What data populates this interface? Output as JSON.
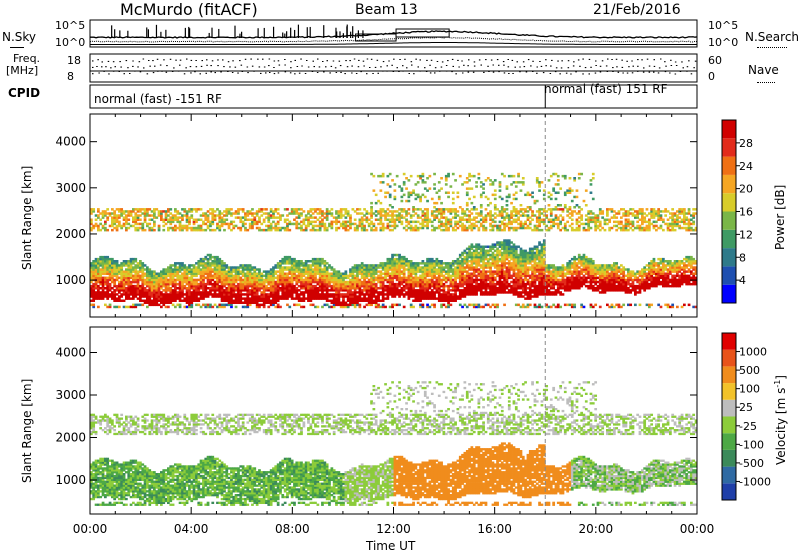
{
  "header": {
    "site": "McMurdo (fitACF)",
    "beam": "Beam 13",
    "date": "21/Feb/2016"
  },
  "top_panel": {
    "nsky_label": "N.Sky",
    "nsky_ticks": [
      "10^5",
      "10^0"
    ],
    "nsearch_label": "N.Search",
    "nsearch_ticks": [
      "10^5",
      "10^0"
    ],
    "freq_label_line1": "Freq.",
    "freq_label_line2": "[MHz]",
    "freq_ticks": [
      "18",
      "8"
    ],
    "nave_label": "Nave",
    "nave_ticks": [
      "60",
      "0"
    ],
    "cpid_label": "CPID",
    "cpid_left": "normal (fast) -151 RF",
    "cpid_right": "normal (fast) 151 RF"
  },
  "chart_data": [
    {
      "type": "heatmap",
      "ylabel": "Slant Range [km]",
      "xlabel": "",
      "yticks": [
        1000,
        2000,
        3000,
        4000
      ],
      "ylim": [
        200,
        4600
      ],
      "xticks": [
        "00:00",
        "04:00",
        "08:00",
        "12:00",
        "16:00",
        "20:00",
        "00:00"
      ],
      "xlim_hours": [
        0,
        24
      ],
      "colorbar": {
        "label": "Power [dB]",
        "ticks": [
          "28",
          "24",
          "20",
          "16",
          "12",
          "8",
          "4"
        ],
        "colors": [
          "#0000ff",
          "#1e4fb0",
          "#2e7a8a",
          "#3f9a64",
          "#7ab648",
          "#d8cc2a",
          "#f5a623",
          "#ef7014",
          "#e22b1b",
          "#d00000"
        ]
      }
    },
    {
      "type": "heatmap",
      "ylabel": "Slant Range [km]",
      "xlabel": "Time UT",
      "yticks": [
        1000,
        2000,
        3000,
        4000
      ],
      "ylim": [
        200,
        4600
      ],
      "xticks": [
        "00:00",
        "04:00",
        "08:00",
        "12:00",
        "16:00",
        "20:00",
        "00:00"
      ],
      "xlim_hours": [
        0,
        24
      ],
      "colorbar": {
        "label": "Velocity [m s",
        "label_sup": "-1",
        "label_end": "]",
        "ticks": [
          "1000",
          "500",
          "100",
          "25",
          "-25",
          "-100",
          "-500",
          "-1000"
        ],
        "colors": [
          "#1f3fa8",
          "#2f6aa3",
          "#3b8a5a",
          "#4da845",
          "#8ccc3a",
          "#bdbdbd",
          "#f2c22a",
          "#f08c1c",
          "#e8531a",
          "#e00000"
        ]
      }
    }
  ],
  "cpid_change_hour": 18.0
}
